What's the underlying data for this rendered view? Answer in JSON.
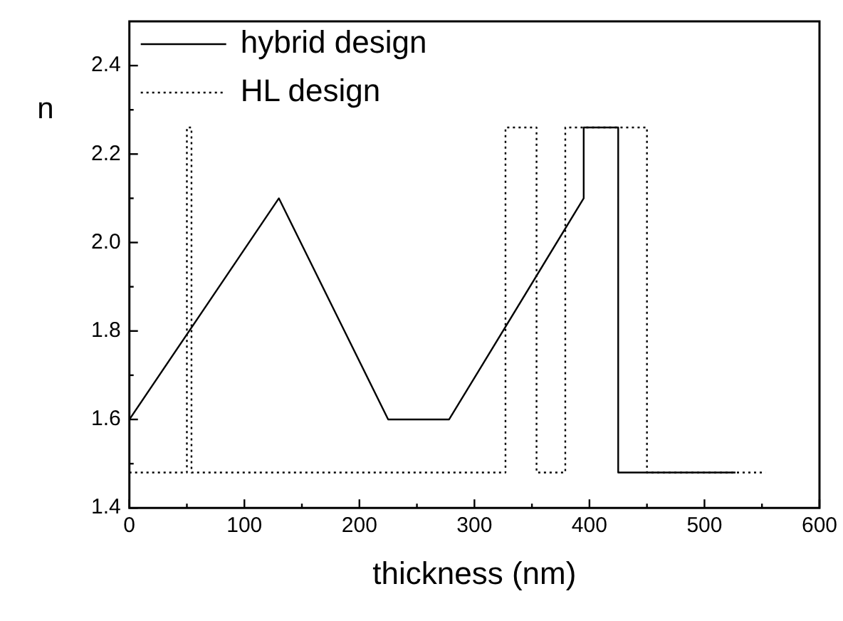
{
  "chart_data": {
    "type": "line",
    "xlabel": "thickness (nm)",
    "ylabel": "n",
    "series": [
      {
        "name": "hybrid design",
        "color": "#000000",
        "line_style": "solid",
        "x": [
          0,
          130,
          225,
          278,
          395,
          395,
          425,
          425,
          527
        ],
        "values": [
          1.6,
          2.1,
          1.6,
          1.6,
          2.1,
          2.26,
          2.26,
          1.48,
          1.48
        ]
      },
      {
        "name": "HL design",
        "color": "#000000",
        "line_style": "dotted",
        "x": [
          0,
          50,
          50,
          54,
          54,
          327,
          327,
          354,
          354,
          379,
          379,
          450,
          450,
          553
        ],
        "values": [
          1.48,
          1.48,
          2.26,
          2.26,
          1.48,
          1.48,
          2.26,
          2.26,
          1.48,
          1.48,
          2.26,
          2.26,
          1.48,
          1.48
        ]
      }
    ],
    "xlim": [
      0,
      600
    ],
    "xticks": [
      0,
      {
        "value": 50,
        "label": null
      },
      100,
      {
        "value": 150,
        "label": null
      },
      200,
      {
        "value": 250,
        "label": null
      },
      300,
      {
        "value": 350,
        "label": null
      },
      400,
      {
        "value": 450,
        "label": null
      },
      500,
      {
        "value": 550,
        "label": null
      },
      600
    ],
    "ylim": [
      1.4,
      2.5
    ],
    "yticks": [
      1.4,
      {
        "value": 1.5,
        "label": null
      },
      1.6,
      {
        "value": 1.7,
        "label": null
      },
      1.8,
      {
        "value": 1.9,
        "label": null
      },
      {
        "value": 2,
        "label": "2.0"
      },
      {
        "value": 2.1,
        "label": null
      },
      2.2,
      {
        "value": 2.3,
        "label": null
      },
      2.4
    ],
    "grid": false,
    "legend": "top left",
    "marker": "none"
  }
}
